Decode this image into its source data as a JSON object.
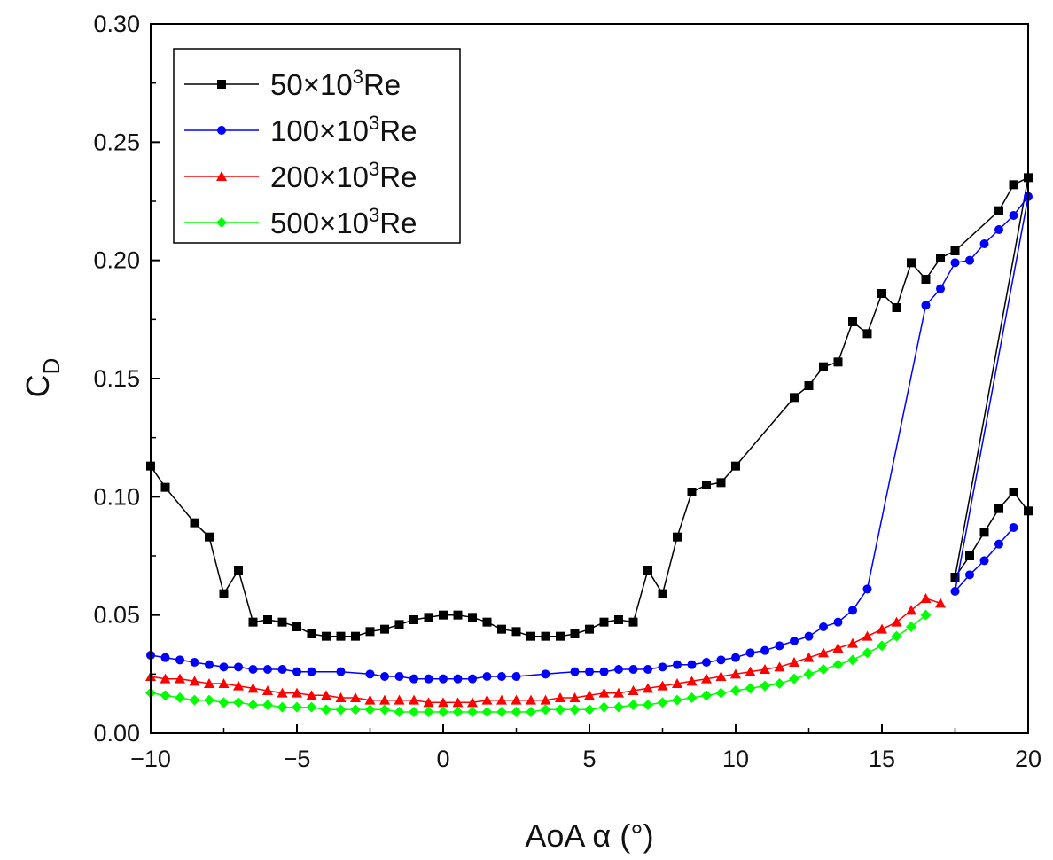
{
  "chart_data": {
    "type": "line",
    "title": "",
    "xlabel": "AoA α (°)",
    "ylabel": "C",
    "ylabel_subscript": "D",
    "xlim": [
      -10,
      20
    ],
    "ylim": [
      0,
      0.3
    ],
    "xticks": [
      -10,
      -5,
      0,
      5,
      10,
      15,
      20
    ],
    "xtick_labels": [
      "−10",
      "−5",
      "0",
      "5",
      "10",
      "15",
      "20"
    ],
    "yticks": [
      0,
      0.05,
      0.1,
      0.15,
      0.2,
      0.25,
      0.3
    ],
    "ytick_labels": [
      "0.00",
      "0.05",
      "0.10",
      "0.15",
      "0.20",
      "0.25",
      "0.30"
    ],
    "grid": false,
    "legend_position": "top-left",
    "series": [
      {
        "name": "50×10³Re",
        "label_base": "50×10",
        "label_sup": "3",
        "label_suffix": "Re",
        "color": "#000000",
        "marker": "square",
        "x": [
          -10,
          -9.5,
          -8.5,
          -8,
          -7.5,
          -7,
          -6.5,
          -6,
          -5.5,
          -5,
          -4.5,
          -4,
          -3.5,
          -3,
          -2.5,
          -2,
          -1.5,
          -1,
          -0.5,
          0,
          0.5,
          1,
          1.5,
          2,
          2.5,
          3,
          3.5,
          4,
          4.5,
          5,
          5.5,
          6,
          6.5,
          7,
          7.5,
          8,
          8.5,
          9,
          9.5,
          10,
          12,
          12.5,
          13,
          13.5,
          14,
          14.5,
          15,
          15.5,
          16,
          16.5,
          17,
          17.5,
          19,
          19.5,
          20,
          17.5,
          18,
          18.5,
          19,
          19.5,
          20
        ],
        "values": [
          0.113,
          0.104,
          0.089,
          0.083,
          0.059,
          0.069,
          0.047,
          0.048,
          0.047,
          0.045,
          0.042,
          0.041,
          0.041,
          0.041,
          0.043,
          0.044,
          0.046,
          0.048,
          0.049,
          0.05,
          0.05,
          0.049,
          0.047,
          0.044,
          0.043,
          0.041,
          0.041,
          0.041,
          0.042,
          0.044,
          0.047,
          0.048,
          0.047,
          0.069,
          0.059,
          0.083,
          0.102,
          0.105,
          0.106,
          0.113,
          0.142,
          0.147,
          0.155,
          0.157,
          0.174,
          0.169,
          0.186,
          0.18,
          0.199,
          0.192,
          0.201,
          0.204,
          0.221,
          0.232,
          0.235,
          0.066,
          0.075,
          0.085,
          0.095,
          0.102,
          0.094
        ]
      },
      {
        "name": "100×10³Re",
        "label_base": "100×10",
        "label_sup": "3",
        "label_suffix": "Re",
        "color": "#0000ff",
        "marker": "circle",
        "x": [
          -10,
          -9.5,
          -9,
          -8.5,
          -8,
          -7.5,
          -7,
          -6.5,
          -6,
          -5.5,
          -5,
          -4.5,
          -3.5,
          -2.5,
          -2,
          -1.5,
          -1,
          -0.5,
          0,
          0.5,
          1,
          1.5,
          2,
          2.5,
          3.5,
          4.5,
          5,
          5.5,
          6,
          6.5,
          7,
          7.5,
          8,
          8.5,
          9,
          9.5,
          10,
          10.5,
          11,
          11.5,
          12,
          12.5,
          13,
          13.5,
          14,
          14.5,
          16.5,
          17,
          17.5,
          18,
          18.5,
          19,
          19.5,
          20,
          17.5,
          18,
          18.5,
          19,
          19.5
        ],
        "values": [
          0.033,
          0.032,
          0.031,
          0.03,
          0.029,
          0.028,
          0.028,
          0.027,
          0.027,
          0.027,
          0.026,
          0.026,
          0.026,
          0.025,
          0.024,
          0.024,
          0.023,
          0.023,
          0.023,
          0.023,
          0.023,
          0.024,
          0.024,
          0.024,
          0.025,
          0.026,
          0.026,
          0.026,
          0.027,
          0.027,
          0.027,
          0.028,
          0.029,
          0.029,
          0.03,
          0.031,
          0.032,
          0.034,
          0.035,
          0.037,
          0.039,
          0.041,
          0.045,
          0.047,
          0.052,
          0.061,
          0.181,
          0.188,
          0.199,
          0.2,
          0.207,
          0.213,
          0.219,
          0.227,
          0.06,
          0.067,
          0.073,
          0.08,
          0.087
        ]
      },
      {
        "name": "200×10³Re",
        "label_base": "200×10",
        "label_sup": "3",
        "label_suffix": "Re",
        "color": "#ff0000",
        "marker": "triangle",
        "x": [
          -10,
          -9.5,
          -9,
          -8.5,
          -8,
          -7.5,
          -7,
          -6.5,
          -6,
          -5.5,
          -5,
          -4.5,
          -4,
          -3.5,
          -3,
          -2.5,
          -2,
          -1.5,
          -1,
          -0.5,
          0,
          0.5,
          1,
          1.5,
          2,
          2.5,
          3,
          3.5,
          4,
          4.5,
          5,
          5.5,
          6,
          6.5,
          7,
          7.5,
          8,
          8.5,
          9,
          9.5,
          10,
          10.5,
          11,
          11.5,
          12,
          12.5,
          13,
          13.5,
          14,
          14.5,
          15,
          15.5,
          16,
          16.5,
          17
        ],
        "values": [
          0.024,
          0.023,
          0.023,
          0.022,
          0.021,
          0.021,
          0.02,
          0.019,
          0.018,
          0.017,
          0.017,
          0.016,
          0.016,
          0.015,
          0.015,
          0.014,
          0.014,
          0.014,
          0.014,
          0.013,
          0.013,
          0.013,
          0.013,
          0.014,
          0.014,
          0.014,
          0.014,
          0.014,
          0.015,
          0.015,
          0.016,
          0.017,
          0.017,
          0.018,
          0.019,
          0.02,
          0.021,
          0.022,
          0.023,
          0.024,
          0.025,
          0.026,
          0.027,
          0.028,
          0.03,
          0.032,
          0.034,
          0.036,
          0.038,
          0.041,
          0.044,
          0.047,
          0.052,
          0.057,
          0.055
        ]
      },
      {
        "name": "500×10³Re",
        "label_base": "500×10",
        "label_sup": "3",
        "label_suffix": "Re",
        "color": "#00ff00",
        "marker": "diamond",
        "x": [
          -10,
          -9.5,
          -9,
          -8.5,
          -8,
          -7.5,
          -7,
          -6.5,
          -6,
          -5.5,
          -5,
          -4.5,
          -4,
          -3.5,
          -3,
          -2.5,
          -2,
          -1.5,
          -1,
          -0.5,
          0,
          0.5,
          1,
          1.5,
          2,
          2.5,
          3,
          3.5,
          4,
          4.5,
          5,
          5.5,
          6,
          6.5,
          7,
          7.5,
          8,
          8.5,
          9,
          9.5,
          10,
          10.5,
          11,
          11.5,
          12,
          12.5,
          13,
          13.5,
          14,
          14.5,
          15,
          15.5,
          16,
          16.5
        ],
        "values": [
          0.017,
          0.016,
          0.015,
          0.014,
          0.014,
          0.013,
          0.013,
          0.012,
          0.012,
          0.011,
          0.011,
          0.011,
          0.01,
          0.01,
          0.01,
          0.01,
          0.01,
          0.009,
          0.009,
          0.009,
          0.009,
          0.009,
          0.009,
          0.009,
          0.009,
          0.009,
          0.009,
          0.01,
          0.01,
          0.01,
          0.01,
          0.011,
          0.011,
          0.012,
          0.012,
          0.013,
          0.014,
          0.015,
          0.016,
          0.017,
          0.018,
          0.019,
          0.02,
          0.021,
          0.023,
          0.025,
          0.027,
          0.029,
          0.031,
          0.034,
          0.037,
          0.041,
          0.045,
          0.05
        ]
      }
    ]
  }
}
